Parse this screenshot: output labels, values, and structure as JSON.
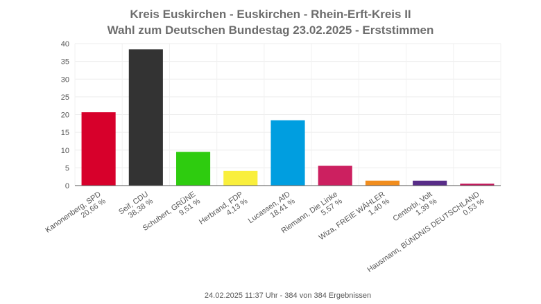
{
  "chart_data": {
    "type": "bar",
    "title": [
      "Kreis Euskirchen - Euskirchen - Rhein-Erft-Kreis II",
      "Wahl zum Deutschen Bundestag 23.02.2025  - Erststimmen"
    ],
    "categories": [
      [
        "Kanonenberg, SPD",
        "20,66 %"
      ],
      [
        "Seif, CDU",
        "38,38 %"
      ],
      [
        "Schubert, GRÜNE",
        "9,51 %"
      ],
      [
        "Herbrand, FDP",
        "4,13 %"
      ],
      [
        "Lucassen, AfD",
        "18,41 %"
      ],
      [
        "Riemann, Die Linke",
        "5,57 %"
      ],
      [
        "Wiza, FREIE WÄHLER",
        "1,40 %"
      ],
      [
        "Centorbi, Volt",
        "1,39 %"
      ],
      [
        "Hausmann, BÜNDNIS DEUTSCHLAND",
        "0,53 %"
      ]
    ],
    "values": [
      20.66,
      38.38,
      9.51,
      4.13,
      18.41,
      5.57,
      1.4,
      1.39,
      0.53
    ],
    "colors": [
      "#d7002b",
      "#333333",
      "#2ecc0f",
      "#f9ef3c",
      "#009ee0",
      "#cc2060",
      "#f18d1e",
      "#582d88",
      "#c2185b"
    ],
    "ylim": [
      0,
      40
    ],
    "yticks": [
      0,
      5,
      10,
      15,
      20,
      25,
      30,
      35,
      40
    ],
    "grid": true,
    "xlabel": "",
    "ylabel": "",
    "footer": "24.02.2025 11:37 Uhr - 384 von 384 Ergebnissen"
  }
}
